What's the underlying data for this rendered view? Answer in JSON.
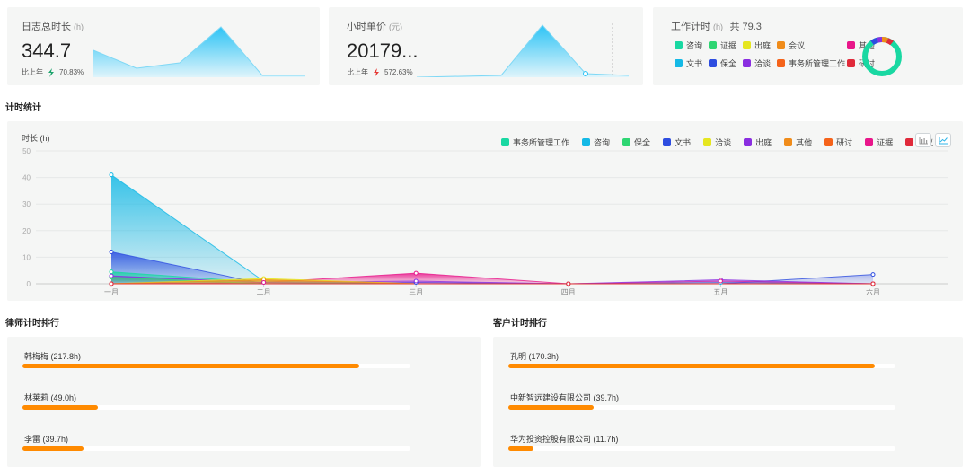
{
  "stats": {
    "log_hours": {
      "title": "日志总时长",
      "unit": "(h)",
      "value": "344.7",
      "yoy_label": "比上年",
      "yoy_value": "70.83%",
      "trend_color": "#1aa36b"
    },
    "hour_rate": {
      "title": "小时单价",
      "unit": "(元)",
      "value": "20179...",
      "yoy_label": "比上年",
      "yoy_value": "572.63%",
      "trend_color": "#e53935"
    },
    "work_hours": {
      "title": "工作计时",
      "unit": "(h)",
      "total_label": "共 79.3",
      "legend": [
        {
          "name": "咨询",
          "color": "#19d8a2"
        },
        {
          "name": "证据",
          "color": "#2ed673"
        },
        {
          "name": "出庭",
          "color": "#e6e620"
        },
        {
          "name": "会议",
          "color": "#f08c1a"
        },
        {
          "name": "其他",
          "color": "#e8168a"
        },
        {
          "name": "文书",
          "color": "#14b9e6"
        },
        {
          "name": "保全",
          "color": "#2e4de0"
        },
        {
          "name": "洽谈",
          "color": "#8a2ee0"
        },
        {
          "name": "事务所管理工作",
          "color": "#f5631a"
        },
        {
          "name": "研讨",
          "color": "#e02a3a"
        }
      ]
    }
  },
  "section_titles": {
    "time_stats": "计时统计",
    "lawyer_rank": "律师计时排行",
    "client_rank": "客户计时排行"
  },
  "chart_data": {
    "type": "area",
    "ylabel": "时长 (h)",
    "ylim": [
      0,
      50
    ],
    "y_ticks": [
      "0",
      "10",
      "20",
      "30",
      "40",
      "50"
    ],
    "categories": [
      "一月",
      "二月",
      "三月",
      "四月",
      "五月",
      "六月"
    ],
    "series": [
      {
        "name": "事务所管理工作",
        "color": "#19d8a2",
        "values": [
          4.5,
          0.5,
          0,
          0,
          0,
          0
        ]
      },
      {
        "name": "咨询",
        "color": "#14b9e6",
        "values": [
          41,
          1,
          0,
          0,
          0.5,
          0
        ]
      },
      {
        "name": "保全",
        "color": "#2ed673",
        "values": [
          2.5,
          0,
          0,
          0,
          0,
          0
        ]
      },
      {
        "name": "文书",
        "color": "#2e4de0",
        "values": [
          12,
          0,
          0.5,
          0,
          0,
          3.5
        ]
      },
      {
        "name": "洽谈",
        "color": "#e6e620",
        "values": [
          0,
          2,
          0,
          0,
          0,
          0
        ]
      },
      {
        "name": "出庭",
        "color": "#8a2ee0",
        "values": [
          3,
          0.5,
          1,
          0,
          1.5,
          0
        ]
      },
      {
        "name": "其他",
        "color": "#f08c1a",
        "values": [
          0,
          1.5,
          0,
          0,
          0,
          0
        ]
      },
      {
        "name": "研讨",
        "color": "#f5631a",
        "values": [
          0,
          0,
          0,
          0,
          0,
          0
        ]
      },
      {
        "name": "证据",
        "color": "#e8168a",
        "values": [
          0,
          0.5,
          4,
          0,
          1,
          0
        ]
      },
      {
        "name": "会议",
        "color": "#e02a3a",
        "values": [
          0,
          0,
          0,
          0,
          0,
          0
        ]
      }
    ]
  },
  "lawyer_rank": [
    {
      "label": "韩梅梅 (217.8h)",
      "value": 217.8
    },
    {
      "label": "林莱莉 (49.0h)",
      "value": 49.0
    },
    {
      "label": "李雷 (39.7h)",
      "value": 39.7
    }
  ],
  "client_rank": [
    {
      "label": "孔明 (170.3h)",
      "value": 170.3
    },
    {
      "label": "中新智远建设有限公司 (39.7h)",
      "value": 39.7
    },
    {
      "label": "华为投资控股有限公司 (11.7h)",
      "value": 11.7
    }
  ]
}
